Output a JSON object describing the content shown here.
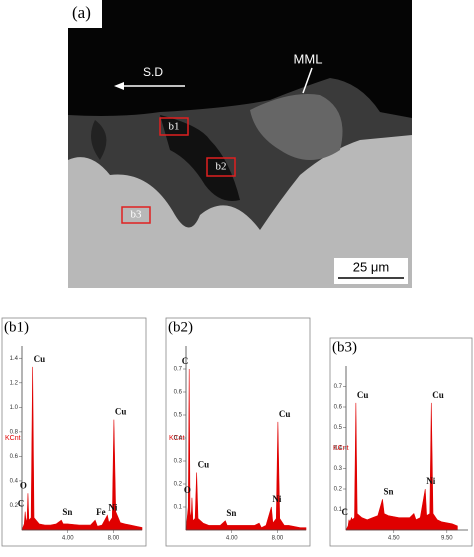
{
  "image_panel": {
    "label": "(a)",
    "direction": "S.D",
    "layer": "MML",
    "regions": [
      "b1",
      "b2",
      "b3"
    ],
    "scale_bar": "25 μm"
  },
  "chart_data": [
    {
      "type": "area",
      "title": "(b1)",
      "y_label": "KCnt",
      "color": "#e00000",
      "x": [
        0,
        0.2,
        0.28,
        0.35,
        0.45,
        0.52,
        0.6,
        0.8,
        0.93,
        1.05,
        1.5,
        2,
        2.5,
        3,
        3.44,
        3.6,
        4,
        5,
        6,
        6.4,
        6.6,
        7,
        7.47,
        7.6,
        7.9,
        8.04,
        8.2,
        8.6,
        9,
        10,
        10.5
      ],
      "values": [
        0,
        0.05,
        0.15,
        0.06,
        0.1,
        0.3,
        0.08,
        0.1,
        1.33,
        0.1,
        0.05,
        0.04,
        0.04,
        0.05,
        0.08,
        0.05,
        0.05,
        0.04,
        0.04,
        0.08,
        0.03,
        0.04,
        0.12,
        0.06,
        0.1,
        0.9,
        0.15,
        0.06,
        0.05,
        0.03,
        0.02
      ],
      "xlim": [
        0,
        10.5
      ],
      "ylim": [
        0,
        1.5
      ],
      "xticks": [
        {
          "value": 4,
          "label": "4.00"
        },
        {
          "value": 8,
          "label": "8.00"
        }
      ],
      "yticks": [
        0.2,
        0.4,
        0.6,
        0.8,
        {
          "value": 1,
          "label": "1.0"
        },
        1.2,
        1.4
      ],
      "annotations": [
        {
          "label": "C",
          "x": 0.28
        },
        {
          "label": "O",
          "x": 0.52
        },
        {
          "label": "Cu",
          "x": 0.93
        },
        {
          "label": "Sn",
          "x": 3.44
        },
        {
          "label": "Fe",
          "x": 6.4
        },
        {
          "label": "Ni",
          "x": 7.47
        },
        {
          "label": "Cu",
          "x": 8.04
        }
      ]
    },
    {
      "type": "area",
      "title": "(b2)",
      "y_label": "KCnt",
      "color": "#e00000",
      "x": [
        0,
        0.2,
        0.28,
        0.35,
        0.45,
        0.52,
        0.6,
        0.8,
        0.93,
        1.05,
        1.5,
        2,
        2.5,
        3,
        3.44,
        3.6,
        4,
        5,
        6,
        6.4,
        6.6,
        7,
        7.47,
        7.6,
        7.9,
        8.04,
        8.2,
        8.6,
        9,
        10,
        10.5
      ],
      "values": [
        0,
        0.1,
        0.7,
        0.08,
        0.05,
        0.14,
        0.04,
        0.05,
        0.25,
        0.05,
        0.03,
        0.02,
        0.02,
        0.02,
        0.04,
        0.02,
        0.02,
        0.02,
        0.02,
        0.03,
        0.01,
        0.02,
        0.1,
        0.03,
        0.05,
        0.47,
        0.05,
        0.02,
        0.02,
        0.01,
        0.01
      ],
      "xlim": [
        0,
        10.5
      ],
      "ylim": [
        0,
        0.8
      ],
      "xticks": [
        {
          "value": 4,
          "label": "4.00"
        },
        {
          "value": 8,
          "label": "8.00"
        }
      ],
      "yticks": [
        0.1,
        0.2,
        0.3,
        0.4,
        0.5,
        0.6,
        0.7
      ],
      "annotations": [
        {
          "label": "C",
          "x": 0.28
        },
        {
          "label": "O",
          "x": 0.52
        },
        {
          "label": "Cu",
          "x": 0.93
        },
        {
          "label": "Sn",
          "x": 3.44
        },
        {
          "label": "Ni",
          "x": 7.47
        },
        {
          "label": "Cu",
          "x": 8.04
        }
      ]
    },
    {
      "type": "area",
      "title": "(b3)",
      "y_label": "KCnt",
      "color": "#e00000",
      "x": [
        0,
        0.2,
        0.28,
        0.35,
        0.45,
        0.52,
        0.6,
        0.8,
        0.93,
        1.05,
        1.5,
        2,
        2.5,
        3,
        3.44,
        3.6,
        4,
        5,
        6,
        6.4,
        6.6,
        7,
        7.47,
        7.6,
        7.9,
        8.04,
        8.2,
        8.6,
        9,
        10,
        10.5
      ],
      "values": [
        0,
        0.02,
        0.05,
        0.04,
        0.05,
        0.06,
        0.05,
        0.06,
        0.62,
        0.08,
        0.06,
        0.05,
        0.06,
        0.07,
        0.15,
        0.08,
        0.07,
        0.06,
        0.06,
        0.08,
        0.05,
        0.06,
        0.2,
        0.07,
        0.08,
        0.62,
        0.08,
        0.05,
        0.04,
        0.03,
        0.02
      ],
      "xlim": [
        0,
        11.5
      ],
      "ylim": [
        0,
        0.8
      ],
      "xticks": [
        {
          "value": 4.5,
          "label": "4.50"
        },
        {
          "value": 9.5,
          "label": "9.50"
        }
      ],
      "yticks": [
        0.1,
        0.2,
        0.3,
        0.4,
        0.5,
        0.6,
        0.7
      ],
      "annotations": [
        {
          "label": "Cu",
          "x": 0.93
        },
        {
          "label": "C",
          "x": 0.28
        },
        {
          "label": "Sn",
          "x": 3.44
        },
        {
          "label": "Ni",
          "x": 7.47
        },
        {
          "label": "Cu",
          "x": 8.04
        }
      ]
    }
  ]
}
